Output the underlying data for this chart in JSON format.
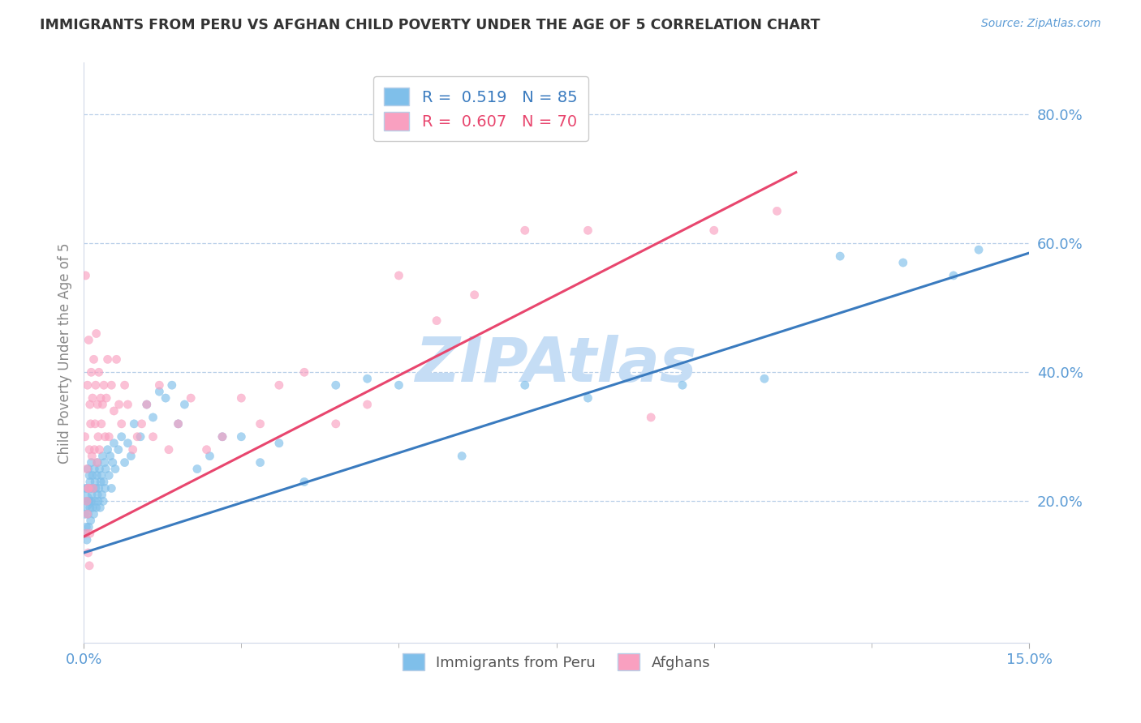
{
  "title": "IMMIGRANTS FROM PERU VS AFGHAN CHILD POVERTY UNDER THE AGE OF 5 CORRELATION CHART",
  "source": "Source: ZipAtlas.com",
  "ylabel": "Child Poverty Under the Age of 5",
  "xlim": [
    0.0,
    0.15
  ],
  "ylim": [
    -0.02,
    0.88
  ],
  "ytick_values": [
    0.2,
    0.4,
    0.6,
    0.8
  ],
  "ytick_labels": [
    "20.0%",
    "40.0%",
    "60.0%",
    "80.0%"
  ],
  "blue_color": "#7fbfea",
  "pink_color": "#f9a0c0",
  "blue_line_color": "#3a7bbf",
  "pink_line_color": "#e8466e",
  "watermark": "ZIPAtlas",
  "watermark_color": "#c5ddf5",
  "blue_trend_x0": 0.0,
  "blue_trend_y0": 0.12,
  "blue_trend_x1": 0.15,
  "blue_trend_y1": 0.585,
  "pink_trend_x0": 0.0,
  "pink_trend_y0": 0.145,
  "pink_trend_x1": 0.113,
  "pink_trend_y1": 0.71,
  "blue_N": 85,
  "pink_N": 70,
  "blue_R": "0.519",
  "pink_R": "0.607",
  "blue_scatter_x": [
    0.0002,
    0.0003,
    0.0003,
    0.0004,
    0.0005,
    0.0005,
    0.0006,
    0.0007,
    0.0007,
    0.0008,
    0.0008,
    0.0009,
    0.001,
    0.001,
    0.0011,
    0.0011,
    0.0012,
    0.0012,
    0.0013,
    0.0014,
    0.0014,
    0.0015,
    0.0016,
    0.0017,
    0.0018,
    0.0018,
    0.0019,
    0.002,
    0.0021,
    0.0022,
    0.0022,
    0.0023,
    0.0024,
    0.0025,
    0.0026,
    0.0027,
    0.0028,
    0.0029,
    0.003,
    0.0031,
    0.0032,
    0.0033,
    0.0034,
    0.0035,
    0.0038,
    0.004,
    0.0042,
    0.0044,
    0.0046,
    0.0048,
    0.005,
    0.0055,
    0.006,
    0.0065,
    0.007,
    0.0075,
    0.008,
    0.009,
    0.01,
    0.011,
    0.012,
    0.013,
    0.014,
    0.015,
    0.016,
    0.018,
    0.02,
    0.022,
    0.025,
    0.028,
    0.031,
    0.035,
    0.04,
    0.045,
    0.05,
    0.06,
    0.07,
    0.08,
    0.095,
    0.108,
    0.12,
    0.13,
    0.138,
    0.142,
    0.0
  ],
  "blue_scatter_y": [
    0.18,
    0.15,
    0.22,
    0.16,
    0.2,
    0.14,
    0.22,
    0.18,
    0.25,
    0.2,
    0.16,
    0.24,
    0.19,
    0.23,
    0.17,
    0.22,
    0.2,
    0.26,
    0.21,
    0.19,
    0.24,
    0.22,
    0.18,
    0.25,
    0.2,
    0.23,
    0.22,
    0.19,
    0.24,
    0.21,
    0.26,
    0.2,
    0.22,
    0.25,
    0.19,
    0.23,
    0.24,
    0.21,
    0.27,
    0.2,
    0.23,
    0.26,
    0.22,
    0.25,
    0.28,
    0.24,
    0.27,
    0.22,
    0.26,
    0.29,
    0.25,
    0.28,
    0.3,
    0.26,
    0.29,
    0.27,
    0.32,
    0.3,
    0.35,
    0.33,
    0.37,
    0.36,
    0.38,
    0.32,
    0.35,
    0.25,
    0.27,
    0.3,
    0.3,
    0.26,
    0.29,
    0.23,
    0.38,
    0.39,
    0.38,
    0.27,
    0.38,
    0.36,
    0.38,
    0.39,
    0.58,
    0.57,
    0.55,
    0.59,
    0.2
  ],
  "blue_scatter_size": [
    55,
    55,
    55,
    55,
    55,
    55,
    55,
    55,
    55,
    55,
    55,
    55,
    55,
    55,
    55,
    55,
    55,
    55,
    55,
    55,
    55,
    55,
    55,
    55,
    55,
    55,
    55,
    55,
    55,
    55,
    55,
    55,
    55,
    55,
    55,
    55,
    55,
    55,
    55,
    55,
    55,
    55,
    55,
    55,
    55,
    55,
    55,
    55,
    55,
    55,
    55,
    55,
    55,
    55,
    55,
    55,
    55,
    55,
    55,
    55,
    55,
    55,
    55,
    55,
    55,
    55,
    55,
    55,
    55,
    55,
    55,
    55,
    55,
    55,
    55,
    55,
    55,
    55,
    55,
    55,
    55,
    55,
    55,
    55,
    300
  ],
  "pink_scatter_x": [
    0.0002,
    0.0003,
    0.0005,
    0.0006,
    0.0007,
    0.0008,
    0.0009,
    0.001,
    0.0011,
    0.0012,
    0.0013,
    0.0014,
    0.0015,
    0.0016,
    0.0017,
    0.0018,
    0.0019,
    0.002,
    0.0021,
    0.0022,
    0.0023,
    0.0024,
    0.0025,
    0.0027,
    0.0028,
    0.003,
    0.0032,
    0.0034,
    0.0036,
    0.0038,
    0.004,
    0.0044,
    0.0048,
    0.0052,
    0.0056,
    0.006,
    0.0065,
    0.007,
    0.0078,
    0.0085,
    0.0092,
    0.01,
    0.011,
    0.012,
    0.0135,
    0.015,
    0.017,
    0.0195,
    0.022,
    0.025,
    0.028,
    0.031,
    0.035,
    0.04,
    0.045,
    0.05,
    0.056,
    0.062,
    0.07,
    0.08,
    0.09,
    0.1,
    0.11,
    0.0004,
    0.0005,
    0.0006,
    0.0007,
    0.0008,
    0.0009,
    0.001
  ],
  "pink_scatter_y": [
    0.3,
    0.55,
    0.25,
    0.38,
    0.22,
    0.45,
    0.28,
    0.35,
    0.32,
    0.4,
    0.27,
    0.36,
    0.22,
    0.42,
    0.28,
    0.32,
    0.38,
    0.46,
    0.26,
    0.35,
    0.3,
    0.4,
    0.28,
    0.36,
    0.32,
    0.35,
    0.38,
    0.3,
    0.36,
    0.42,
    0.3,
    0.38,
    0.34,
    0.42,
    0.35,
    0.32,
    0.38,
    0.35,
    0.28,
    0.3,
    0.32,
    0.35,
    0.3,
    0.38,
    0.28,
    0.32,
    0.36,
    0.28,
    0.3,
    0.36,
    0.32,
    0.38,
    0.4,
    0.32,
    0.35,
    0.55,
    0.48,
    0.52,
    0.62,
    0.62,
    0.33,
    0.62,
    0.65,
    0.15,
    0.2,
    0.18,
    0.12,
    0.22,
    0.1,
    0.15
  ],
  "pink_scatter_size": [
    55,
    55,
    55,
    55,
    55,
    55,
    55,
    55,
    55,
    55,
    55,
    55,
    55,
    55,
    55,
    55,
    55,
    55,
    55,
    55,
    55,
    55,
    55,
    55,
    55,
    55,
    55,
    55,
    55,
    55,
    55,
    55,
    55,
    55,
    55,
    55,
    55,
    55,
    55,
    55,
    55,
    55,
    55,
    55,
    55,
    55,
    55,
    55,
    55,
    55,
    55,
    55,
    55,
    55,
    55,
    55,
    55,
    55,
    55,
    55,
    55,
    55,
    55,
    55,
    55,
    55,
    55,
    55,
    55,
    55
  ]
}
